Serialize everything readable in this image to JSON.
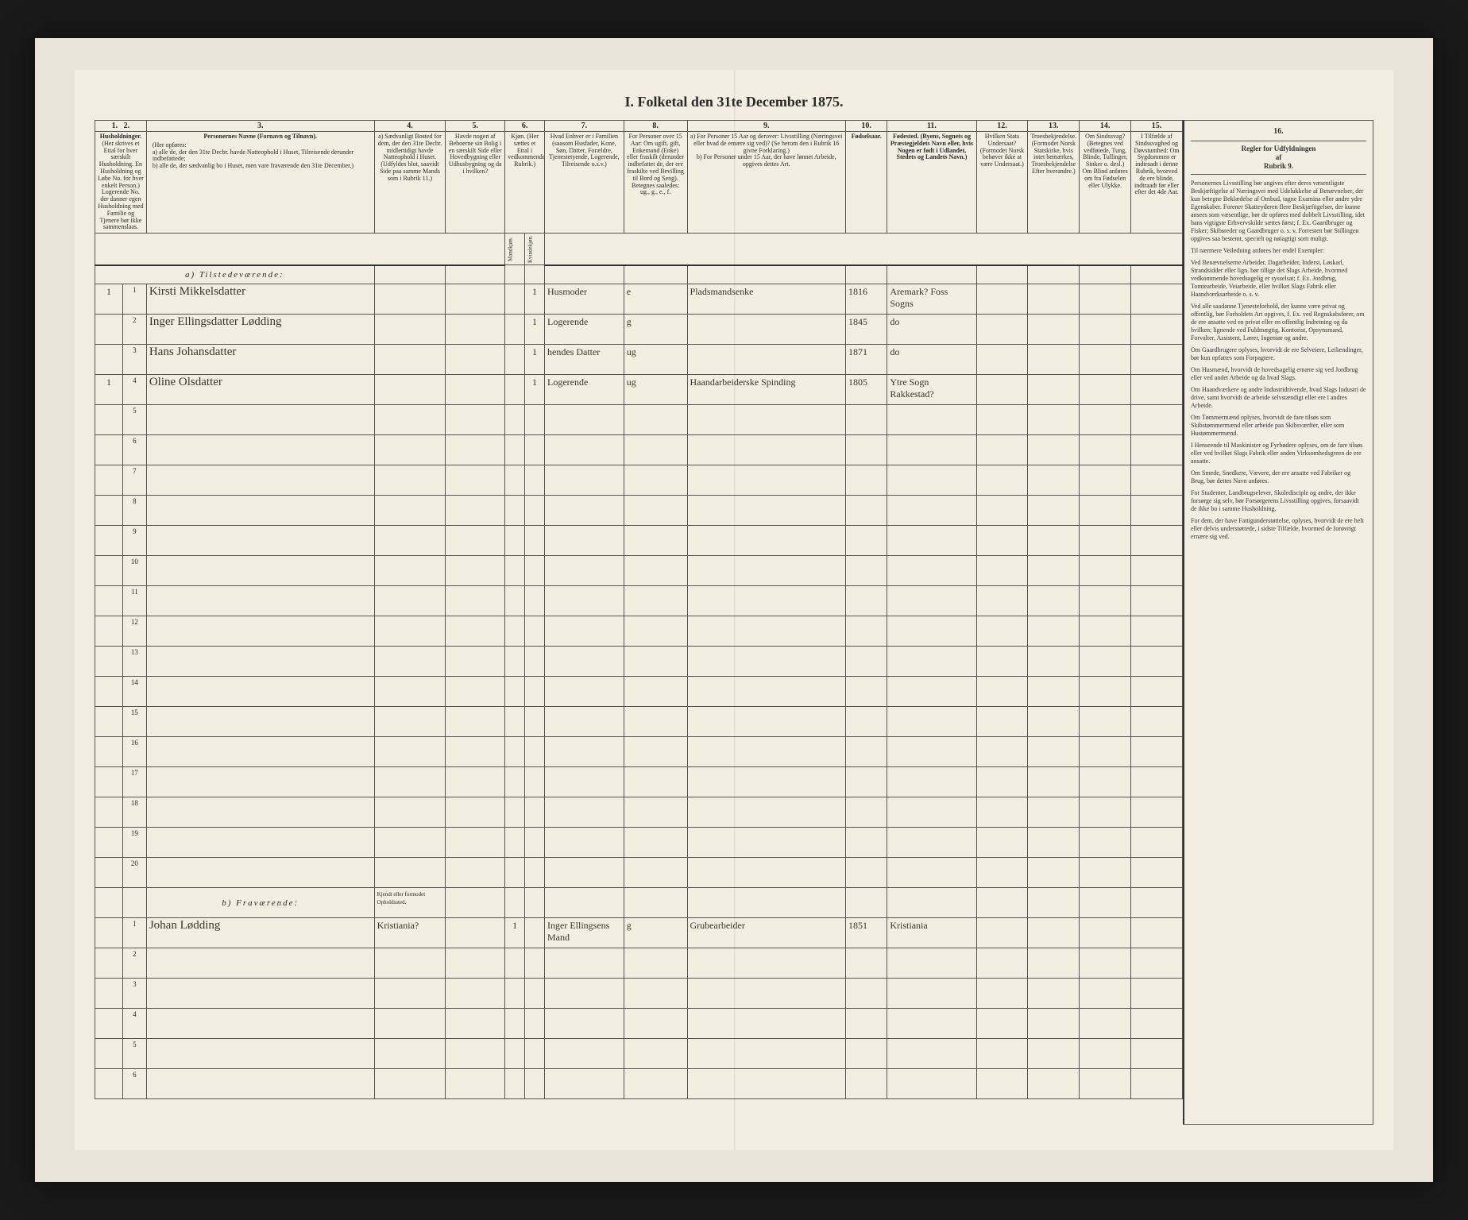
{
  "title": "I. Folketal den 31te December 1875.",
  "columns": {
    "nums": [
      "1.",
      "2.",
      "3.",
      "4.",
      "5.",
      "6.",
      "7.",
      "8.",
      "9.",
      "10.",
      "11.",
      "12.",
      "13.",
      "14.",
      "15.",
      "16."
    ],
    "h1": "Husholdninger.",
    "h1_sub": "(Her skrives et Ettal for hver særskilt Husholdning. En Husholdning og Løbe No. for hver enkelt Person.)",
    "h1_note": "Logerende No. der danner egen Husholdning med Familie og Tjenere bør ikke sammenslaas.",
    "h3": "Personernes Navne (Fornavn og Tilnavn).",
    "h3_sub_a": "a) alle de, der den 31te Decbr. havde Natteophold i Huset, Tilreisende derunder indbefattede;",
    "h3_sub_b": "b) alle de, der sædvanlig bo i Huset, men vare fraværende den 31te December.",
    "h4": "a) Sædvanligt Bosted for dem, der den 31te Decbr. midlertidigt havde Natteophold i Huset. (Udfyldes blot, saavidt Side paa samme Mands som i Rubrik 11.)",
    "h5": "Havde nogen af Beboerne sin Bolig i en særskilt Side eller Hovedbygning eller Udhusbygning og da i hvilken?",
    "h6": "Kjøn. (Her sættes et Ettal i vedkommende Rubrik.)",
    "h6a": "Mandkjøn.",
    "h6b": "Kvindekjøn.",
    "h7": "Hvad Enhver er i Familien (saasom Husfader, Kone, Søn, Datter, Forældre, Tjenestetyende, Logerende, Tilreisende o.s.v.)",
    "h8": "For Personer over 15 Aar: Om ugift, gift, Enkemand (Enke) eller fraskilt (derunder indbefattet de, der ere fraskilte ved Bevilling til Bord og Seng). Betegnes saaledes: ug., g., e., f.",
    "h9": "a) For Personer 15 Aar og derover: Livsstilling (Næringsvei eller hvad de ernære sig ved)? (Se herom den i Rubrik 16 givne Forklaring.)\nb) For Personer under 15 Aar, der have lønnet Arbeide, opgives dettes Art.",
    "h10": "Fødselsaar.",
    "h11": "Fødested. (Byens, Sognets og Præstegjeldets Navn eller, hvis Nogen er født i Udlandet, Stedets og Landets Navn.)",
    "h12": "Hvilken Stats Undersaat? (Formodet Norsk behøver ikke at være Undersaat.)",
    "h13": "Troesbekjendelse. (Formodet Norsk Statskirke, hvis intet bemærkes, Troesbekjendelse Efter hverandre.)",
    "h14": "Om Sindssvag? (Betegnes ved vedføiede, Tung, Blinde, Tullinger, Sinker o. desl.) Om Blind anføres om fra Fødselen eller Ulykke.",
    "h15": "I Tilfælde af Sindssvaghed og Døvstumhed: Om Sygdommen er indtraadt i denne Rubrik, hvorved de ere blinde, indtraadt før eller efter det 4de Aar.",
    "h16": "Regler for Udfyldningen af Rubrik 9."
  },
  "sections": {
    "present": "a) Tilstedeværende:",
    "absent": "b) Fraværende:",
    "absent_col4": "Kjendt eller formodet Opholdssted."
  },
  "present_rows": [
    {
      "hh": "1",
      "no": "1",
      "name": "Kirsti Mikkelsdatter",
      "sex_f": "1",
      "rel": "Husmoder",
      "civ": "e",
      "occ": "Pladsmandsenke",
      "year": "1816",
      "place": "Aremark? Foss Sogns"
    },
    {
      "hh": "",
      "no": "2",
      "name": "Inger Ellingsdatter Lødding",
      "sex_f": "1",
      "rel": "Logerende",
      "civ": "g",
      "occ": "",
      "year": "1845",
      "place": "do"
    },
    {
      "hh": "",
      "no": "3",
      "name": "Hans Johansdatter",
      "sex_f": "1",
      "rel": "hendes Datter",
      "civ": "ug",
      "occ": "",
      "year": "1871",
      "place": "do"
    },
    {
      "hh": "1",
      "no": "4",
      "name": "Oline Olsdatter",
      "sex_f": "1",
      "rel": "Logerende",
      "civ": "ug",
      "occ": "Haandarbeiderske Spinding",
      "year": "1805",
      "place": "Ytre Sogn Rakkestad?"
    }
  ],
  "absent_rows": [
    {
      "no": "1",
      "name": "Johan Lødding",
      "c4": "Kristiania?",
      "sex_m": "1",
      "rel": "Inger Ellingsens Mand",
      "civ": "g",
      "occ": "Grubearbeider",
      "year": "1851",
      "place": "Kristiania"
    }
  ],
  "empty_present": [
    5,
    6,
    7,
    8,
    9,
    10,
    11,
    12,
    13,
    14,
    15,
    16,
    17,
    18,
    19,
    20
  ],
  "empty_absent": [
    2,
    3,
    4,
    5,
    6
  ],
  "instructions": {
    "header_col": "16.",
    "header": "Regler for Udfyldningen\naf\nRubrik 9.",
    "paras": [
      "Personernes Livsstilling bør angives efter deres væsentligste Beskjæftigelse af Næringsvei med Udelukkelse af Benævnelser, der kun betegne Beklædelse af Ombud, tagne Examina eller andre ydre Egenskaber. Forener Skatteyderen flere Beskjæftigelser, der kunne ansees som væsentlige, bør de opføres med dobbelt Livsstilling, idet hans vigtigste Erhvervskilde sættes først; f. Ex. Gaardbruger og Fisker; Skibsreder og Gaardbruger o. s. v. Forresten bør Stillingen opgives saa bestemt, specielt og nøiagtigt som muligt.",
      "Til nærmere Veiledning anføres her endel Exempler:",
      "Ved Benævnelserne Arbeider, Dagarbeider, Inderst, Løskarl, Strandsidder eller lign. bør tillige det Slags Arbeide, hvormed vedkommende hovedsagelig er sysselsat; f. Ex. Jordbrug, Tomtearbeide, Veiarbeide, eller hvilket Slags Fabrik eller Haandværksarbeide o. s. v.",
      "Ved alle saadanne Tjenesteforhold, der kunne være privat og offentlig, bør Forholdets Art opgives, f. Ex. ved Regnskabsfører, om de ere ansatte ved en privat eller en offentlig Indretning og da hvilken; lignende ved Fuldmægtig, Kontorist, Opsynsmand, Forvalter, Assistent, Lærer, Ingeniør og andre.",
      "Om Gaardbrugere oplyses, hvorvidt de ere Selveiere, Leilændinger, bør kun opfattes som Forpagtere.",
      "Om Husmænd, hvorvidt de hovedsagelig ernære sig ved Jordbrug eller ved andet Arbeide og da hvad Slags.",
      "Om Haandværkere og andre Industridrivende, hvad Slags Industri de drive, samt hvorvidt de arbeide selvstændigt eller ere i andres Arbeide.",
      "Om Tømmermænd oplyses, hvorvidt de fare tilsøs som Skibstømmermænd eller arbeide paa Skibsværfter, eller som Hustømmermænd.",
      "I Henseende til Maskinister og Fyrbødere oplyses, om de fare tilsøs eller ved hvilket Slags Fabrik eller anden Virksomhedsgreen de ere ansatte.",
      "Om Smede, Snedkere, Vævere, der ere ansatte ved Fabriker og Brug, bør dettes Navn anføres.",
      "For Studenter, Landbrugselever, Skoledisciple og andre, der ikke forsørge sig selv, bør Forsørgerens Livsstilling opgives, forsaavidt de ikke bo i samme Husholdning.",
      "For dem, der have Fattigunderstøttelse, oplyses, hvorvidt de ere helt eller delvis understøttede, i sidste Tilfælde, hvormed de forøvrigt ernære sig ved."
    ]
  }
}
